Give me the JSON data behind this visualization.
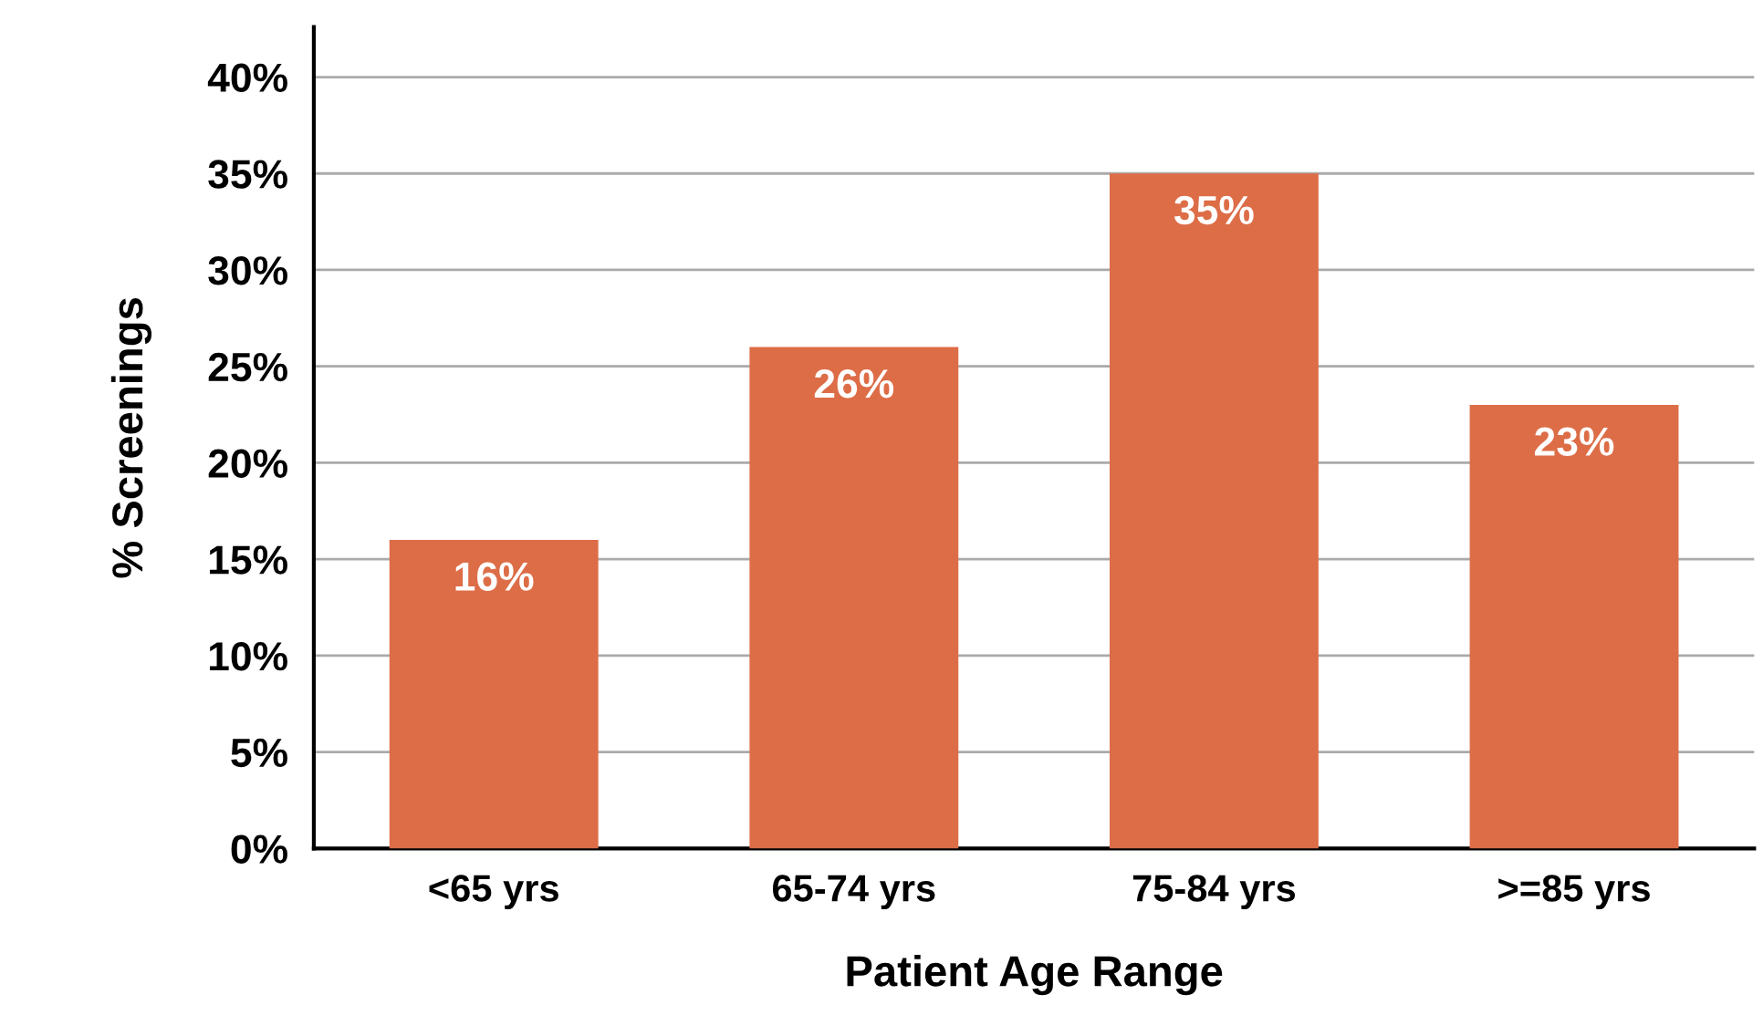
{
  "chart_data": {
    "type": "bar",
    "xlabel": "Patient Age Range",
    "ylabel": "% Screenings",
    "categories": [
      "<65 yrs",
      "65-74 yrs",
      "75-84 yrs",
      ">=85 yrs"
    ],
    "values": [
      16,
      26,
      35,
      23
    ],
    "color": "#dd6d47",
    "ylim": [
      0,
      42.6
    ],
    "yticks": [
      {
        "value": 0,
        "label": "0%"
      },
      {
        "value": 5,
        "label": "5%"
      },
      {
        "value": 10,
        "label": "10%"
      },
      {
        "value": 15,
        "label": "15%"
      },
      {
        "value": 20,
        "label": "20%"
      },
      {
        "value": 25,
        "label": "25%"
      },
      {
        "value": 30,
        "label": "30%"
      },
      {
        "value": 35,
        "label": "35%"
      },
      {
        "value": 40,
        "label": "40%"
      }
    ],
    "value_labels": [
      "16%",
      "26%",
      "35%",
      "23%"
    ],
    "grid": "y"
  }
}
